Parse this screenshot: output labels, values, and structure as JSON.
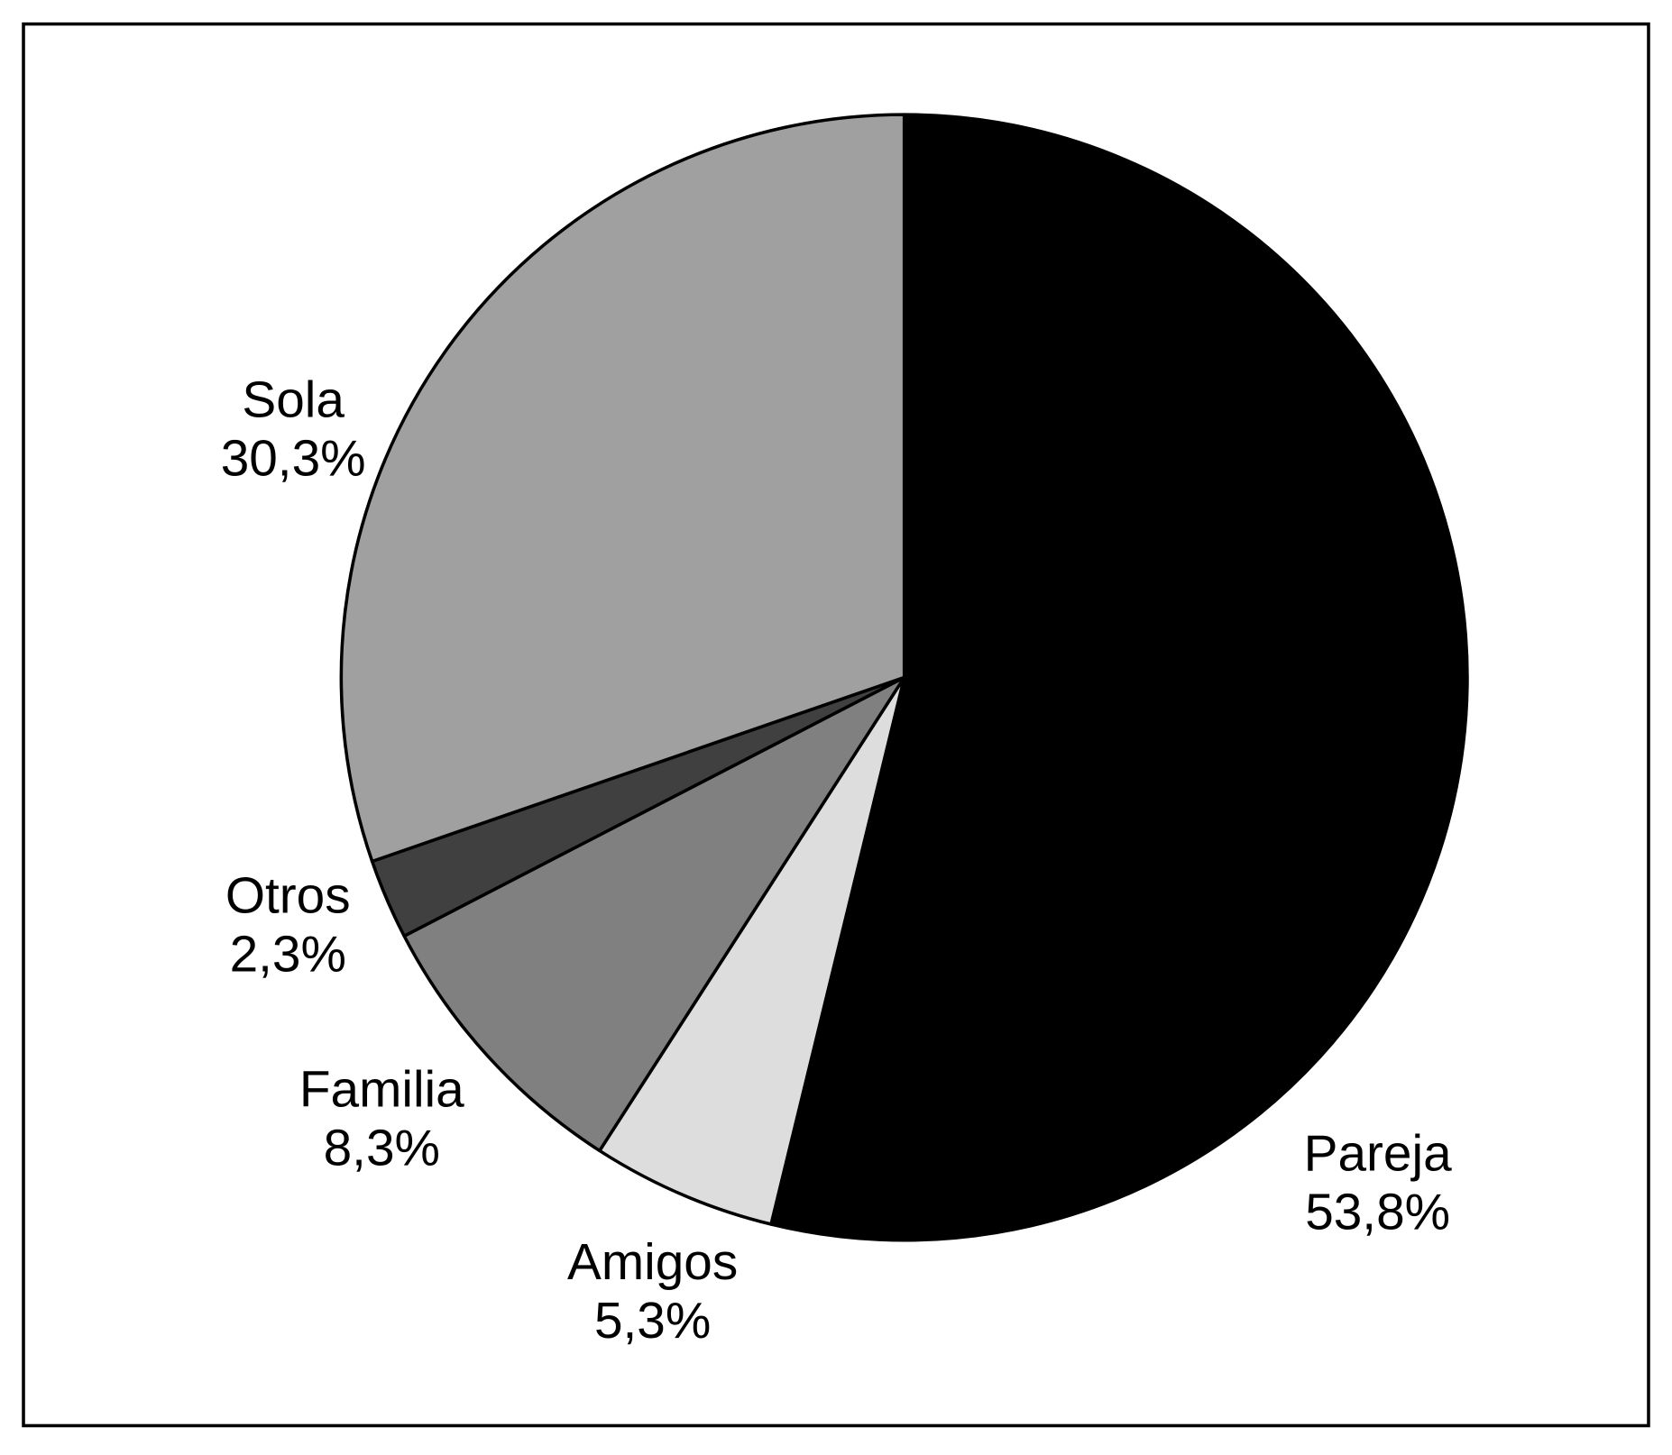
{
  "chart_data": {
    "type": "pie",
    "categories": [
      "Pareja",
      "Amigos",
      "Familia",
      "Otros",
      "Sola"
    ],
    "values": [
      53.8,
      5.3,
      8.3,
      2.3,
      30.3
    ],
    "value_labels": [
      "53,8%",
      "5,3%",
      "8,3%",
      "2,3%",
      "30,3%"
    ],
    "colors": [
      "#000000",
      "#dddddd",
      "#808080",
      "#404040",
      "#a0a0a0"
    ]
  }
}
